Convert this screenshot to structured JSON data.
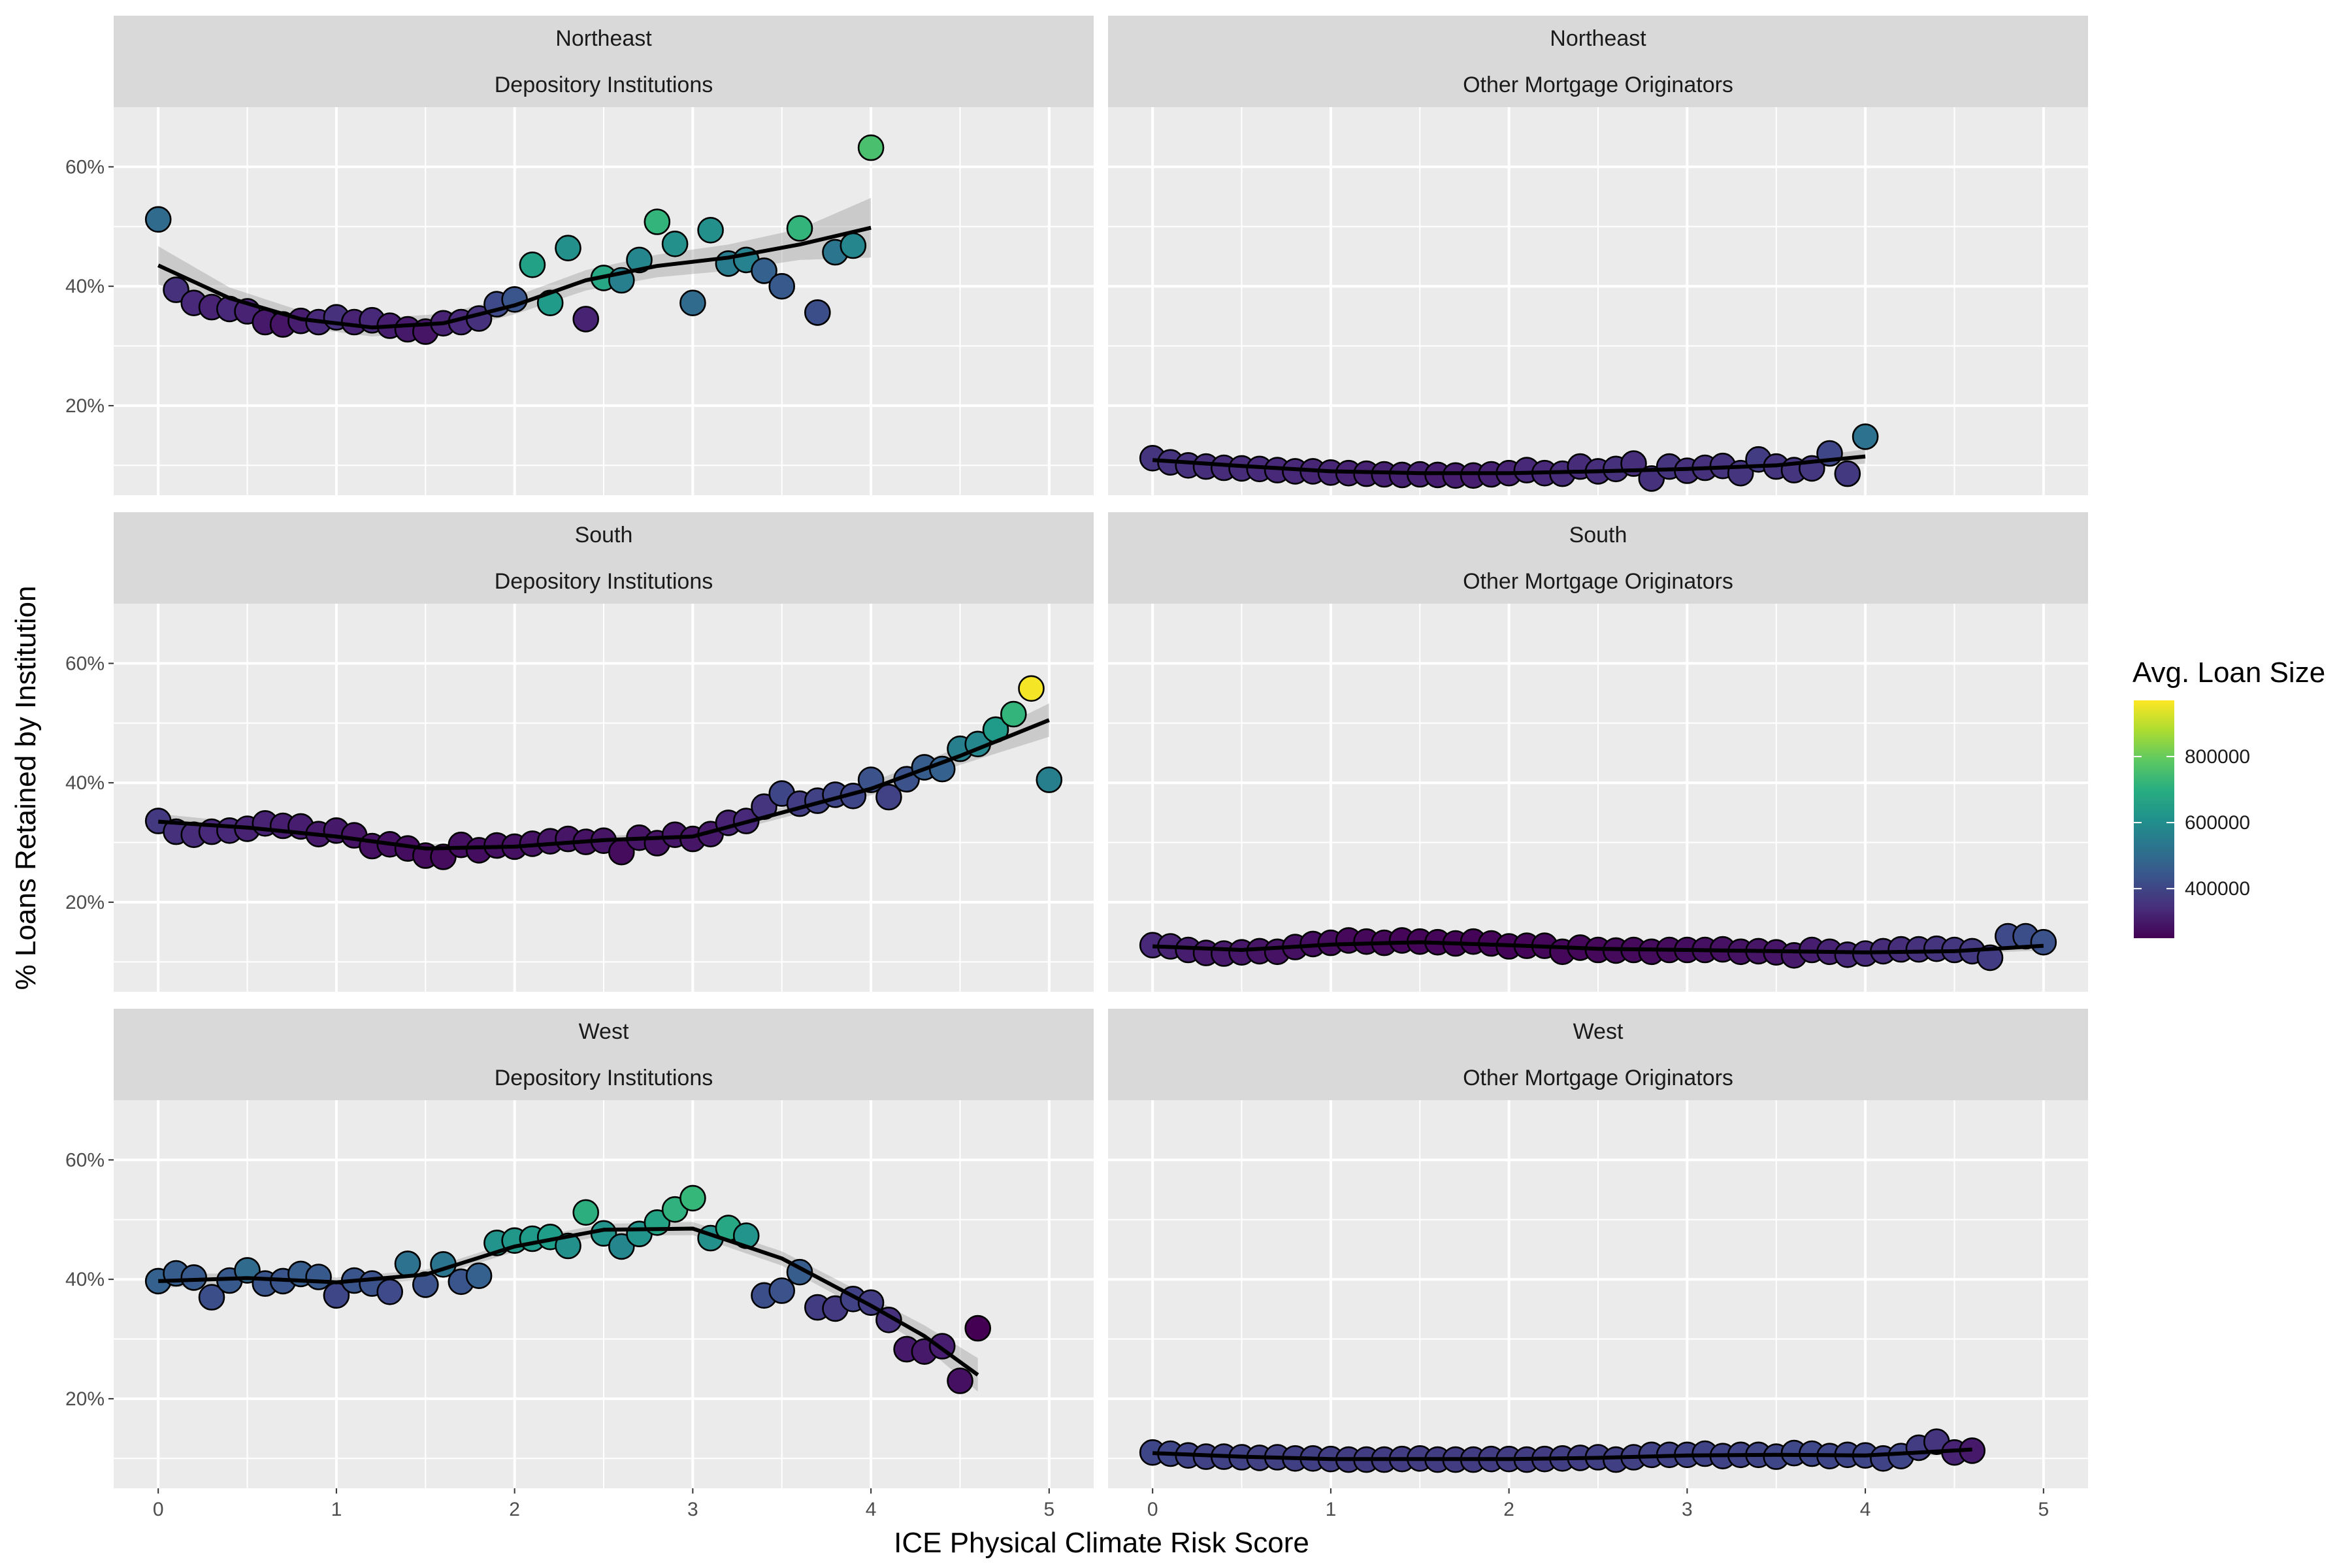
{
  "chart_data": {
    "type": "scatter",
    "xlabel": "ICE Physical Climate Risk Score",
    "ylabel": "% Loans Retained by Institution",
    "x_ticks": [
      0,
      1,
      2,
      3,
      4,
      5
    ],
    "x_tick_labels": [
      "0",
      "1",
      "2",
      "3",
      "4",
      "5"
    ],
    "y_ticks": [
      20,
      40,
      60
    ],
    "y_tick_labels": [
      "20%",
      "40%",
      "60%"
    ],
    "xlim": [
      -0.25,
      5.25
    ],
    "ylim": [
      5,
      70
    ],
    "grid": true,
    "smoother": "loess with confidence band",
    "legend": {
      "title": "Avg. Loan Size",
      "placement": "right",
      "colormap": "viridis",
      "min": 250000,
      "max": 970000,
      "ticks": [
        400000,
        600000,
        800000
      ],
      "tick_labels": [
        "400000",
        "600000",
        "800000"
      ]
    },
    "panels": [
      {
        "region": "Northeast",
        "institution": "Depository Institutions",
        "x": [
          0,
          0.1,
          0.2,
          0.3,
          0.4,
          0.5,
          0.6,
          0.7,
          0.8,
          0.9,
          1.0,
          1.1,
          1.2,
          1.3,
          1.4,
          1.5,
          1.6,
          1.7,
          1.8,
          1.9,
          2.0,
          2.1,
          2.2,
          2.3,
          2.4,
          2.5,
          2.6,
          2.7,
          2.8,
          2.9,
          3.0,
          3.1,
          3.2,
          3.3,
          3.4,
          3.5,
          3.6,
          3.7,
          3.8,
          3.9,
          4.0
        ],
        "y": [
          51.2,
          39.4,
          37.2,
          36.5,
          36.2,
          35.8,
          34.0,
          33.6,
          34.2,
          34.0,
          34.8,
          34.0,
          34.3,
          33.4,
          32.8,
          32.4,
          33.8,
          34.0,
          34.6,
          37.0,
          37.8,
          43.6,
          37.2,
          46.4,
          34.5,
          41.4,
          41.0,
          44.4,
          50.8,
          47.1,
          37.2,
          49.4,
          43.8,
          44.4,
          42.6,
          40.0,
          49.7,
          35.6,
          45.7,
          46.8,
          63.2
        ],
        "color": [
          500000,
          350000,
          330000,
          320000,
          330000,
          320000,
          300000,
          290000,
          310000,
          330000,
          350000,
          320000,
          330000,
          310000,
          300000,
          290000,
          320000,
          330000,
          350000,
          410000,
          440000,
          660000,
          640000,
          610000,
          320000,
          680000,
          560000,
          580000,
          720000,
          610000,
          500000,
          610000,
          550000,
          570000,
          470000,
          450000,
          720000,
          420000,
          530000,
          580000,
          760000
        ],
        "fit_x": [
          0,
          0.4,
          0.8,
          1.2,
          1.6,
          2.0,
          2.4,
          2.8,
          3.2,
          3.6,
          4.0
        ],
        "fit_y": [
          43.5,
          38.0,
          34.5,
          33.1,
          33.8,
          36.8,
          41.0,
          43.4,
          44.8,
          47.0,
          49.8
        ],
        "fit_se": [
          3.2,
          1.8,
          1.4,
          1.5,
          1.6,
          1.5,
          1.7,
          1.9,
          2.2,
          2.6,
          5.0
        ]
      },
      {
        "region": "Northeast",
        "institution": "Other Mortgage Originators",
        "x": [
          0,
          0.1,
          0.2,
          0.3,
          0.4,
          0.5,
          0.6,
          0.7,
          0.8,
          0.9,
          1.0,
          1.1,
          1.2,
          1.3,
          1.4,
          1.5,
          1.6,
          1.7,
          1.8,
          1.9,
          2.0,
          2.1,
          2.2,
          2.3,
          2.4,
          2.5,
          2.6,
          2.7,
          2.8,
          2.9,
          3.0,
          3.1,
          3.2,
          3.3,
          3.4,
          3.5,
          3.6,
          3.7,
          3.8,
          3.9,
          4.0
        ],
        "y": [
          11.2,
          10.5,
          10.0,
          9.8,
          9.6,
          9.5,
          9.4,
          9.2,
          9.0,
          9.0,
          8.8,
          8.7,
          8.6,
          8.5,
          8.4,
          8.5,
          8.4,
          8.3,
          8.3,
          8.5,
          8.7,
          9.2,
          8.7,
          8.6,
          9.8,
          9.0,
          9.4,
          10.3,
          7.8,
          9.8,
          9.1,
          9.6,
          9.9,
          8.7,
          11.0,
          9.8,
          9.2,
          9.5,
          12.0,
          8.6,
          14.8
        ],
        "color": [
          360000,
          355000,
          350000,
          345000,
          340000,
          340000,
          335000,
          330000,
          330000,
          325000,
          325000,
          320000,
          320000,
          315000,
          315000,
          315000,
          310000,
          310000,
          310000,
          315000,
          320000,
          330000,
          330000,
          340000,
          340000,
          345000,
          350000,
          345000,
          350000,
          360000,
          350000,
          350000,
          355000,
          360000,
          380000,
          360000,
          360000,
          365000,
          400000,
          370000,
          520000
        ],
        "fit_x": [
          0,
          0.5,
          1.0,
          1.5,
          2.0,
          2.5,
          3.0,
          3.5,
          4.0
        ],
        "fit_y": [
          10.9,
          9.9,
          9.0,
          8.7,
          8.7,
          9.0,
          9.4,
          10.0,
          11.5
        ],
        "fit_se": [
          0.8,
          0.5,
          0.4,
          0.4,
          0.4,
          0.4,
          0.5,
          0.6,
          1.2
        ]
      },
      {
        "region": "South",
        "institution": "Depository Institutions",
        "x": [
          0,
          0.1,
          0.2,
          0.3,
          0.4,
          0.5,
          0.6,
          0.7,
          0.8,
          0.9,
          1.0,
          1.1,
          1.2,
          1.3,
          1.4,
          1.5,
          1.6,
          1.7,
          1.8,
          1.9,
          2.0,
          2.1,
          2.2,
          2.3,
          2.4,
          2.5,
          2.6,
          2.7,
          2.8,
          2.9,
          3.0,
          3.1,
          3.2,
          3.3,
          3.4,
          3.5,
          3.6,
          3.7,
          3.8,
          3.9,
          4.0,
          4.1,
          4.2,
          4.3,
          4.4,
          4.5,
          4.6,
          4.7,
          4.8,
          4.9,
          5.0
        ],
        "y": [
          33.6,
          31.8,
          31.3,
          31.8,
          32.0,
          32.3,
          33.2,
          32.8,
          32.7,
          31.4,
          32.0,
          31.2,
          29.4,
          29.7,
          29.0,
          27.8,
          27.6,
          29.6,
          28.7,
          29.5,
          29.3,
          29.8,
          30.2,
          30.6,
          30.1,
          30.3,
          28.4,
          30.8,
          29.9,
          31.3,
          30.6,
          31.4,
          33.3,
          33.6,
          36.0,
          38.2,
          36.5,
          37.0,
          38.0,
          37.8,
          40.5,
          37.6,
          40.6,
          42.6,
          42.3,
          45.7,
          46.5,
          48.9,
          51.5,
          55.8,
          40.5
        ],
        "color": [
          370000,
          350000,
          340000,
          330000,
          330000,
          320000,
          320000,
          310000,
          310000,
          300000,
          300000,
          290000,
          280000,
          280000,
          275000,
          270000,
          270000,
          280000,
          275000,
          280000,
          280000,
          285000,
          290000,
          290000,
          285000,
          290000,
          270000,
          290000,
          285000,
          295000,
          290000,
          300000,
          320000,
          330000,
          360000,
          400000,
          380000,
          390000,
          400000,
          400000,
          430000,
          390000,
          430000,
          460000,
          470000,
          560000,
          580000,
          640000,
          720000,
          960000,
          560000
        ],
        "fit_x": [
          0,
          0.5,
          1.0,
          1.5,
          2.0,
          2.5,
          3.0,
          3.5,
          4.0,
          4.5,
          5.0
        ],
        "fit_y": [
          33.5,
          32.5,
          31.0,
          29.0,
          29.3,
          30.4,
          31.0,
          35.0,
          39.0,
          44.5,
          50.5
        ],
        "fit_se": [
          1.3,
          0.8,
          0.7,
          0.7,
          0.7,
          0.7,
          0.8,
          0.9,
          1.1,
          1.5,
          2.8
        ]
      },
      {
        "region": "South",
        "institution": "Other Mortgage Originators",
        "x": [
          0,
          0.1,
          0.2,
          0.3,
          0.4,
          0.5,
          0.6,
          0.7,
          0.8,
          0.9,
          1.0,
          1.1,
          1.2,
          1.3,
          1.4,
          1.5,
          1.6,
          1.7,
          1.8,
          1.9,
          2.0,
          2.1,
          2.2,
          2.3,
          2.4,
          2.5,
          2.6,
          2.7,
          2.8,
          2.9,
          3.0,
          3.1,
          3.2,
          3.3,
          3.4,
          3.5,
          3.6,
          3.7,
          3.8,
          3.9,
          4.0,
          4.1,
          4.2,
          4.3,
          4.4,
          4.5,
          4.6,
          4.7,
          4.8,
          4.9,
          5.0
        ],
        "y": [
          12.8,
          12.6,
          12.0,
          11.5,
          11.4,
          11.6,
          11.8,
          11.7,
          12.5,
          13.0,
          13.2,
          13.6,
          13.4,
          13.2,
          13.6,
          13.4,
          13.3,
          13.1,
          13.4,
          13.1,
          12.6,
          12.7,
          12.7,
          11.7,
          12.4,
          12.0,
          11.9,
          12.0,
          11.7,
          12.0,
          12.0,
          12.0,
          12.1,
          11.7,
          11.8,
          11.6,
          11.1,
          12.0,
          11.7,
          11.2,
          11.4,
          11.8,
          12.1,
          12.1,
          12.2,
          12.0,
          11.8,
          10.7,
          14.3,
          14.3,
          13.3
        ],
        "color": [
          330000,
          320000,
          310000,
          300000,
          300000,
          295000,
          290000,
          285000,
          280000,
          275000,
          270000,
          265000,
          262000,
          262000,
          260000,
          260000,
          260000,
          258000,
          258000,
          258000,
          258000,
          260000,
          262000,
          262000,
          262000,
          265000,
          268000,
          268000,
          270000,
          272000,
          275000,
          280000,
          282000,
          285000,
          290000,
          292000,
          300000,
          310000,
          320000,
          330000,
          335000,
          340000,
          345000,
          350000,
          360000,
          365000,
          370000,
          380000,
          410000,
          420000,
          430000
        ],
        "fit_x": [
          0,
          0.5,
          1.0,
          1.5,
          2.0,
          2.5,
          3.0,
          3.5,
          4.0,
          4.5,
          5.0
        ],
        "fit_y": [
          12.6,
          12.0,
          12.9,
          13.3,
          12.8,
          12.2,
          12.0,
          11.8,
          11.6,
          11.8,
          12.7
        ],
        "fit_se": [
          0.5,
          0.3,
          0.3,
          0.3,
          0.3,
          0.3,
          0.3,
          0.3,
          0.3,
          0.4,
          0.8
        ]
      },
      {
        "region": "West",
        "institution": "Depository Institutions",
        "x": [
          0,
          0.1,
          0.2,
          0.3,
          0.4,
          0.5,
          0.6,
          0.7,
          0.8,
          0.9,
          1.0,
          1.1,
          1.2,
          1.3,
          1.4,
          1.5,
          1.6,
          1.7,
          1.8,
          1.9,
          2.0,
          2.1,
          2.2,
          2.3,
          2.4,
          2.5,
          2.6,
          2.7,
          2.8,
          2.9,
          3.0,
          3.1,
          3.2,
          3.3,
          3.4,
          3.5,
          3.6,
          3.7,
          3.8,
          3.9,
          4.0,
          4.1,
          4.2,
          4.3,
          4.4,
          4.5,
          4.6
        ],
        "y": [
          39.7,
          41.0,
          40.3,
          37.0,
          39.8,
          41.5,
          39.3,
          39.7,
          40.9,
          40.4,
          37.3,
          39.8,
          39.3,
          37.9,
          42.6,
          39.1,
          42.5,
          39.6,
          40.6,
          46.1,
          46.5,
          46.8,
          47.1,
          45.6,
          51.2,
          47.7,
          45.5,
          47.6,
          49.5,
          51.7,
          53.6,
          46.9,
          48.6,
          47.3,
          37.3,
          38.1,
          41.2,
          35.3,
          35.1,
          36.7,
          36.1,
          33.2,
          28.3,
          27.9,
          28.8,
          23.0,
          31.8
        ],
        "color": [
          470000,
          460000,
          450000,
          420000,
          450000,
          500000,
          440000,
          440000,
          460000,
          450000,
          400000,
          440000,
          430000,
          410000,
          520000,
          430000,
          530000,
          440000,
          470000,
          620000,
          630000,
          640000,
          650000,
          610000,
          700000,
          620000,
          580000,
          620000,
          670000,
          710000,
          730000,
          610000,
          680000,
          620000,
          420000,
          430000,
          460000,
          380000,
          370000,
          390000,
          380000,
          350000,
          300000,
          300000,
          310000,
          280000,
          230000
        ],
        "fit_x": [
          0,
          0.5,
          1.0,
          1.5,
          2.0,
          2.5,
          3.0,
          3.5,
          4.0,
          4.3,
          4.6
        ],
        "fit_y": [
          39.7,
          40.2,
          39.5,
          40.8,
          45.5,
          48.3,
          48.5,
          43.5,
          35.6,
          30.5,
          24.0
        ],
        "fit_se": [
          1.2,
          0.8,
          0.8,
          0.8,
          0.9,
          1.0,
          1.1,
          1.2,
          1.4,
          1.8,
          2.8
        ]
      },
      {
        "region": "West",
        "institution": "Other Mortgage Originators",
        "x": [
          0,
          0.1,
          0.2,
          0.3,
          0.4,
          0.5,
          0.6,
          0.7,
          0.8,
          0.9,
          1.0,
          1.1,
          1.2,
          1.3,
          1.4,
          1.5,
          1.6,
          1.7,
          1.8,
          1.9,
          2.0,
          2.1,
          2.2,
          2.3,
          2.4,
          2.5,
          2.6,
          2.7,
          2.8,
          2.9,
          3.0,
          3.1,
          3.2,
          3.3,
          3.4,
          3.5,
          3.6,
          3.7,
          3.8,
          3.9,
          4.0,
          4.1,
          4.2,
          4.3,
          4.4,
          4.5,
          4.6
        ],
        "y": [
          11.0,
          10.8,
          10.5,
          10.3,
          10.3,
          10.2,
          10.1,
          10.2,
          10.0,
          10.0,
          9.9,
          9.8,
          9.8,
          9.8,
          9.9,
          10.0,
          9.8,
          9.8,
          9.8,
          9.9,
          9.9,
          9.8,
          9.9,
          10.0,
          10.1,
          10.2,
          9.8,
          10.2,
          10.6,
          10.6,
          10.6,
          10.8,
          10.4,
          10.6,
          10.6,
          10.3,
          10.9,
          10.8,
          10.4,
          10.6,
          10.5,
          10.0,
          10.4,
          11.8,
          12.8,
          11.0,
          11.3
        ],
        "color": [
          400000,
          400000,
          395000,
          390000,
          390000,
          390000,
          388000,
          388000,
          385000,
          385000,
          382000,
          380000,
          380000,
          380000,
          380000,
          380000,
          378000,
          378000,
          378000,
          378000,
          380000,
          380000,
          380000,
          382000,
          382000,
          385000,
          385000,
          388000,
          390000,
          392000,
          395000,
          395000,
          395000,
          395000,
          398000,
          400000,
          405000,
          405000,
          400000,
          400000,
          400000,
          395000,
          400000,
          380000,
          360000,
          320000,
          300000
        ],
        "fit_x": [
          0,
          0.5,
          1.0,
          1.5,
          2.0,
          2.5,
          3.0,
          3.5,
          4.0,
          4.3,
          4.6
        ],
        "fit_y": [
          10.9,
          10.3,
          9.9,
          9.9,
          9.9,
          10.1,
          10.5,
          10.6,
          10.5,
          11.0,
          11.5
        ],
        "fit_se": [
          0.4,
          0.3,
          0.3,
          0.3,
          0.3,
          0.3,
          0.3,
          0.3,
          0.4,
          0.5,
          0.8
        ]
      }
    ]
  }
}
